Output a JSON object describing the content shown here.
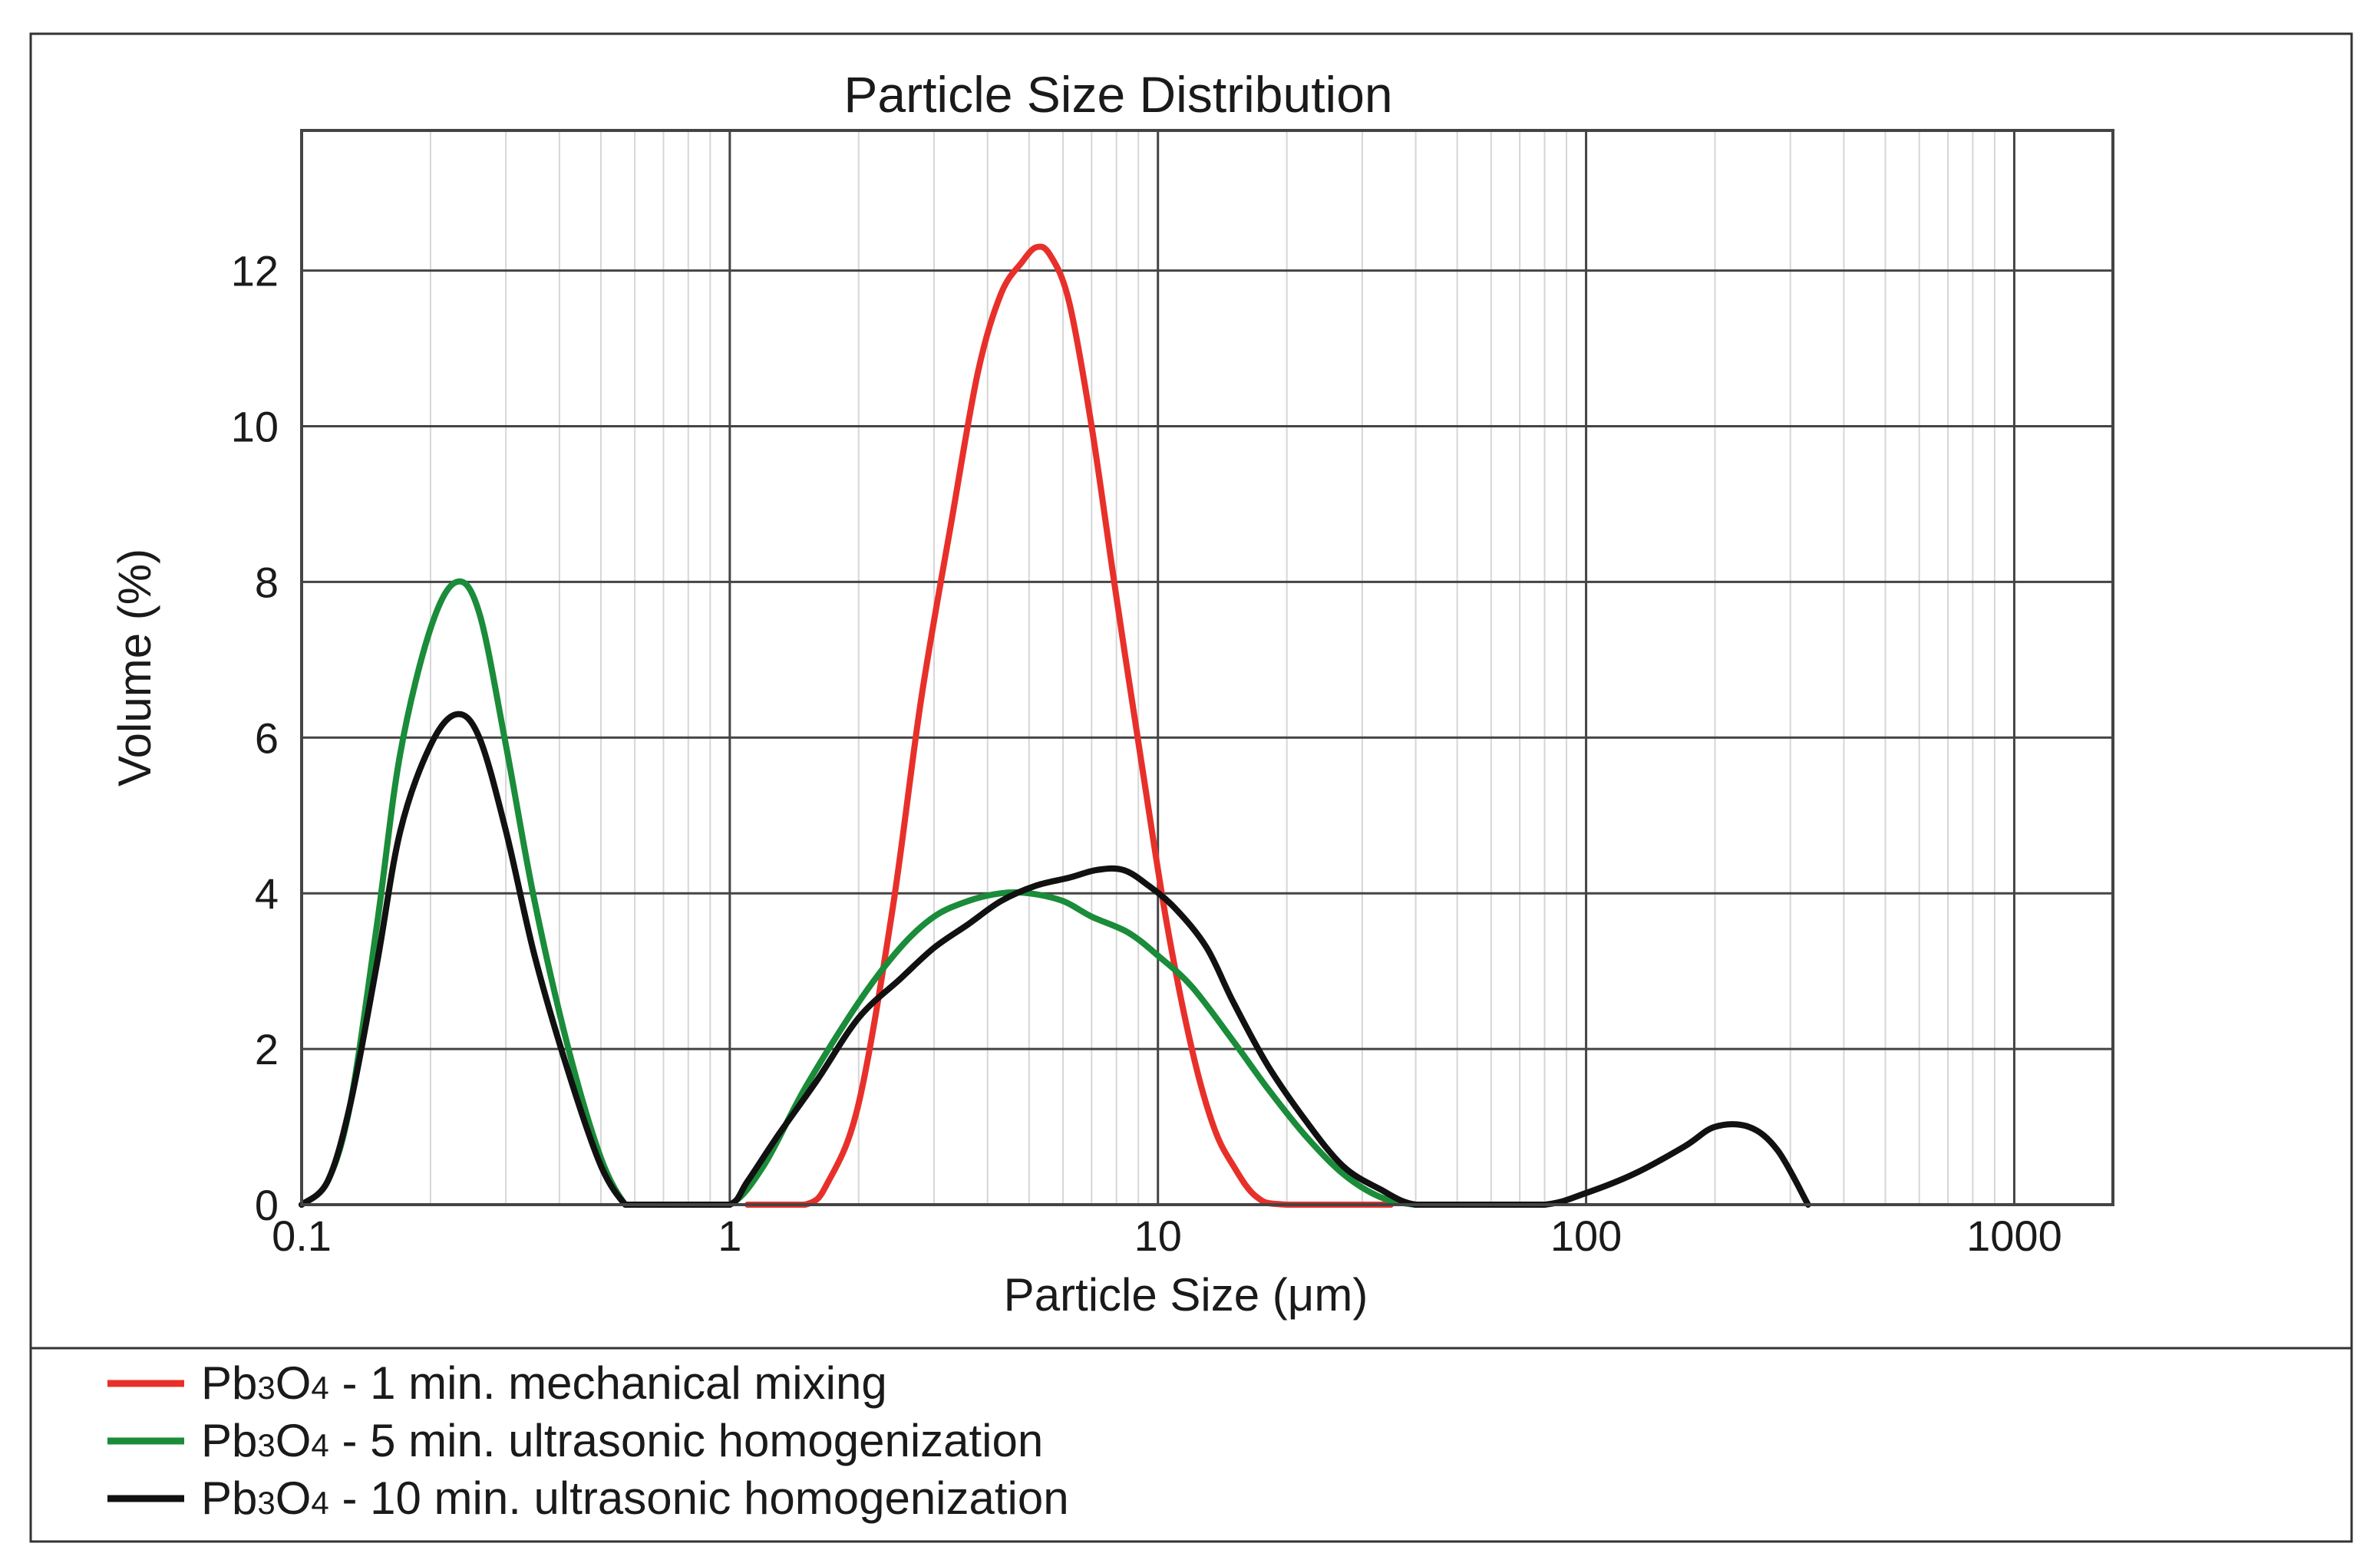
{
  "chart_data": {
    "type": "line",
    "title": "Particle Size Distribution",
    "xlabel": "Particle Size (μm)",
    "ylabel": "Volume (%)",
    "xscale": "log",
    "xlim": [
      0.1,
      1700
    ],
    "ylim": [
      0,
      13.8
    ],
    "x_ticks": [
      {
        "value": 0.1,
        "label": "0.1"
      },
      {
        "value": 1,
        "label": "1"
      },
      {
        "value": 10,
        "label": "10"
      },
      {
        "value": 100,
        "label": "100"
      },
      {
        "value": 1000,
        "label": "1000"
      }
    ],
    "y_ticks": [
      {
        "value": 0,
        "label": "0"
      },
      {
        "value": 2,
        "label": "2"
      },
      {
        "value": 4,
        "label": "4"
      },
      {
        "value": 6,
        "label": "6"
      },
      {
        "value": 8,
        "label": "8"
      },
      {
        "value": 10,
        "label": "10"
      },
      {
        "value": 12,
        "label": "12"
      }
    ],
    "grid": true,
    "legend_position": "bottom",
    "series": [
      {
        "name": "Pb3O4 - 1 min. mechanical mixing",
        "legend": {
          "formula_base": "Pb",
          "sub1": "3",
          "mid": "O",
          "sub2": "4",
          "rest": " - 1 min. mechanical mixing"
        },
        "color": "#e8302a",
        "x": [
          1.1,
          1.5,
          1.7,
          2.0,
          2.4,
          2.8,
          3.3,
          3.8,
          4.3,
          4.8,
          5.2,
          5.6,
          6.2,
          7.0,
          8.0,
          9.2,
          10.5,
          12,
          13.5,
          15,
          17,
          20,
          35
        ],
        "values": [
          0,
          0,
          0.3,
          1.3,
          3.8,
          6.5,
          8.8,
          10.7,
          11.7,
          12.1,
          12.3,
          12.2,
          11.6,
          10.0,
          7.8,
          5.6,
          3.6,
          2.0,
          1.0,
          0.5,
          0.1,
          0,
          0
        ]
      },
      {
        "name": "Pb3O4 - 5 min. ultrasonic homogenization",
        "legend": {
          "formula_base": "Pb",
          "sub1": "3",
          "mid": "O",
          "sub2": "4",
          "rest": " - 5 min. ultrasonic homogenization"
        },
        "color": "#1a8c3a",
        "x": [
          0.1,
          0.115,
          0.13,
          0.15,
          0.17,
          0.2,
          0.23,
          0.26,
          0.3,
          0.35,
          0.42,
          0.5,
          0.57,
          0.6,
          0.8,
          1.0,
          1.2,
          1.5,
          2.0,
          2.5,
          3.0,
          3.6,
          4.3,
          5.0,
          6.0,
          7.0,
          8.5,
          10,
          12,
          15,
          18,
          22,
          27,
          33,
          40,
          50
        ],
        "values": [
          0,
          0.3,
          1.3,
          3.6,
          5.8,
          7.4,
          8.0,
          7.6,
          5.9,
          3.9,
          2.0,
          0.6,
          0,
          0,
          0,
          0,
          0.5,
          1.5,
          2.6,
          3.3,
          3.7,
          3.9,
          4.0,
          4.0,
          3.9,
          3.7,
          3.5,
          3.2,
          2.8,
          2.1,
          1.5,
          0.9,
          0.4,
          0.1,
          0,
          0
        ]
      },
      {
        "name": "Pb3O4 - 10 min. ultrasonic homogenization",
        "legend": {
          "formula_base": "Pb",
          "sub1": "3",
          "mid": "O",
          "sub2": "4",
          "rest": " - 10 min. ultrasonic homogenization"
        },
        "color": "#111111",
        "x": [
          0.1,
          0.115,
          0.13,
          0.15,
          0.17,
          0.2,
          0.23,
          0.26,
          0.3,
          0.35,
          0.42,
          0.5,
          0.57,
          0.6,
          0.8,
          1.0,
          1.1,
          1.3,
          1.6,
          2.0,
          2.5,
          3.0,
          3.6,
          4.3,
          5.2,
          6.2,
          7.2,
          8.3,
          9.5,
          11,
          13,
          15,
          18,
          22,
          27,
          33,
          40,
          55,
          80,
          100,
          130,
          170,
          200,
          240,
          280,
          330
        ],
        "values": [
          0,
          0.3,
          1.3,
          3.1,
          4.8,
          5.9,
          6.3,
          6.0,
          4.8,
          3.2,
          1.7,
          0.5,
          0,
          0,
          0,
          0,
          0.3,
          0.9,
          1.6,
          2.4,
          2.9,
          3.3,
          3.6,
          3.9,
          4.1,
          4.2,
          4.3,
          4.3,
          4.1,
          3.8,
          3.3,
          2.6,
          1.8,
          1.1,
          0.5,
          0.2,
          0,
          0,
          0,
          0.15,
          0.4,
          0.75,
          1.0,
          1.0,
          0.7,
          0
        ]
      }
    ]
  }
}
